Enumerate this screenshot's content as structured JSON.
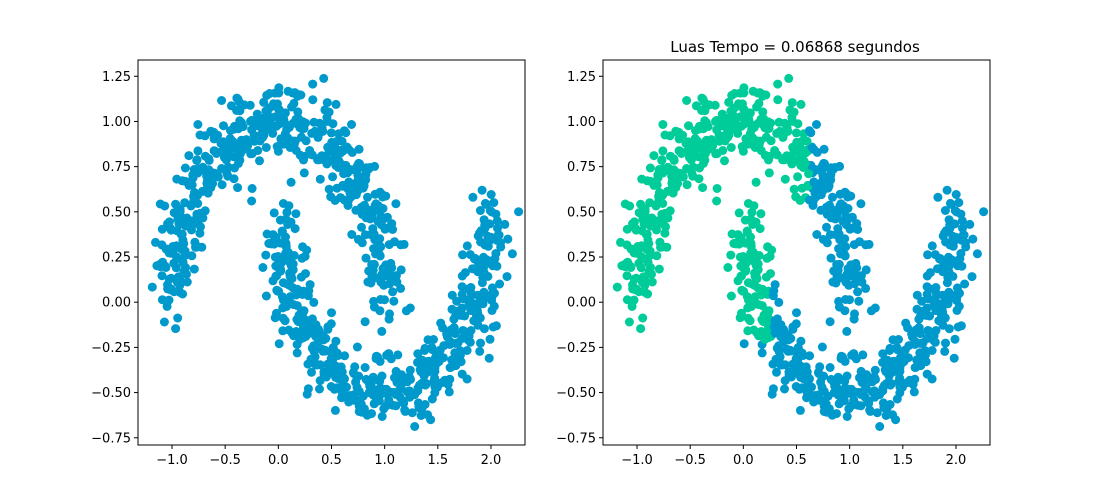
{
  "figure": {
    "background": "#ffffff",
    "colors": {
      "cluster_blue": "#0099cc",
      "cluster_green": "#00cc99"
    }
  },
  "chart_data": [
    {
      "type": "scatter",
      "title": "",
      "xlabel": "",
      "ylabel": "",
      "xlim": [
        -1.32,
        2.32
      ],
      "ylim": [
        -0.79,
        1.34
      ],
      "xticks": [
        "−1.0",
        "−0.5",
        "0.0",
        "0.5",
        "1.0",
        "1.5",
        "2.0"
      ],
      "xtick_values": [
        -1.0,
        -0.5,
        0.0,
        0.5,
        1.0,
        1.5,
        2.0
      ],
      "yticks": [
        "−0.75",
        "−0.50",
        "−0.25",
        "0.00",
        "0.25",
        "0.50",
        "0.75",
        "1.00",
        "1.25"
      ],
      "ytick_values": [
        -0.75,
        -0.5,
        -0.25,
        0.0,
        0.25,
        0.5,
        0.75,
        1.0,
        1.25
      ],
      "grid": false,
      "dataset": "two interleaving moons, ~1000 points, noise ≈ 0.1",
      "series": [
        {
          "color": "#0099cc",
          "points": "all"
        }
      ]
    },
    {
      "type": "scatter",
      "title": "Luas Tempo = 0.06868 segundos",
      "xlabel": "",
      "ylabel": "",
      "xlim": [
        -1.32,
        2.32
      ],
      "ylim": [
        -0.79,
        1.34
      ],
      "xticks": [
        "−1.0",
        "−0.5",
        "0.0",
        "0.5",
        "1.0",
        "1.5",
        "2.0"
      ],
      "xtick_values": [
        -1.0,
        -0.5,
        0.0,
        0.5,
        1.0,
        1.5,
        2.0
      ],
      "yticks": [
        "−0.75",
        "−0.50",
        "−0.25",
        "0.00",
        "0.25",
        "0.50",
        "0.75",
        "1.00",
        "1.25"
      ],
      "ytick_values": [
        -0.75,
        -0.5,
        -0.25,
        0.0,
        0.25,
        0.5,
        0.75,
        1.0,
        1.25
      ],
      "grid": false,
      "dataset": "same two moons, colored by cluster assignment",
      "series": [
        {
          "color": "#00cc99",
          "region": "left part of upper moon (x < ~0.6) and upper part of lower moon's left arm (x ≈ -0.1 to 0.25, y > ~-0.2)"
        },
        {
          "color": "#0099cc",
          "region": "remaining points"
        }
      ]
    }
  ]
}
